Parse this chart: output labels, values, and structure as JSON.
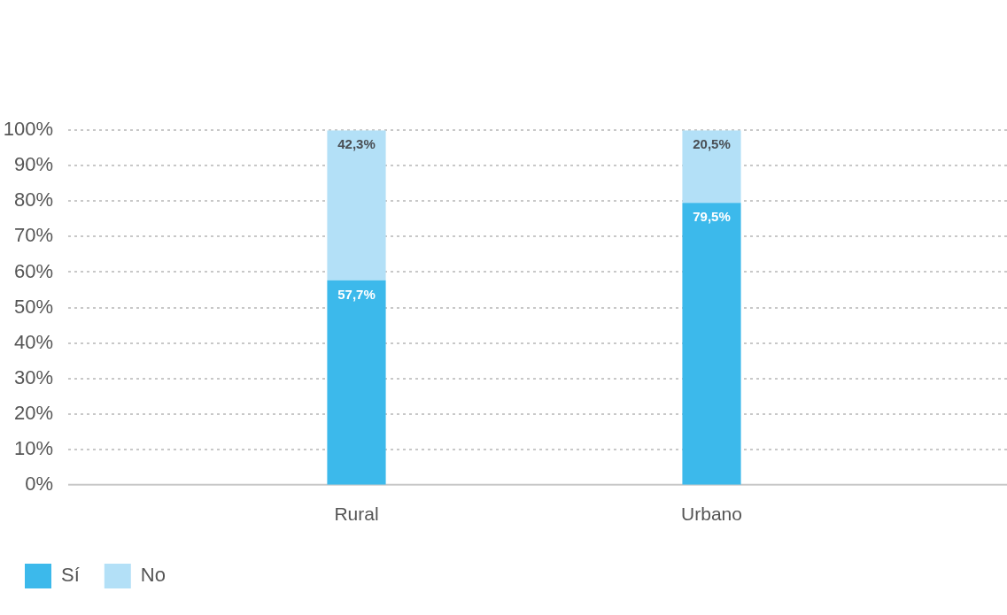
{
  "chart_data": {
    "type": "bar",
    "stacked": true,
    "categories": [
      "Rural",
      "Urbano"
    ],
    "series": [
      {
        "name": "Sí",
        "color": "#3cb9eb",
        "values": [
          57.7,
          79.5
        ],
        "value_labels": [
          "57,7%",
          "79,5%"
        ]
      },
      {
        "name": "No",
        "color": "#b3e0f7",
        "values": [
          42.3,
          20.5
        ],
        "value_labels": [
          "42,3%",
          "20,5%"
        ]
      }
    ],
    "ylim": [
      0,
      100
    ],
    "yticks": [
      {
        "value": 0,
        "label": "0%"
      },
      {
        "value": 10,
        "label": "10%"
      },
      {
        "value": 20,
        "label": "20%"
      },
      {
        "value": 30,
        "label": "30%"
      },
      {
        "value": 40,
        "label": "40%"
      },
      {
        "value": 50,
        "label": "50%"
      },
      {
        "value": 60,
        "label": "60%"
      },
      {
        "value": 70,
        "label": "70%"
      },
      {
        "value": 80,
        "label": "80%"
      },
      {
        "value": 90,
        "label": "90%"
      },
      {
        "value": 100,
        "label": "100%"
      }
    ],
    "grid": "y",
    "legend": "bottom left"
  }
}
